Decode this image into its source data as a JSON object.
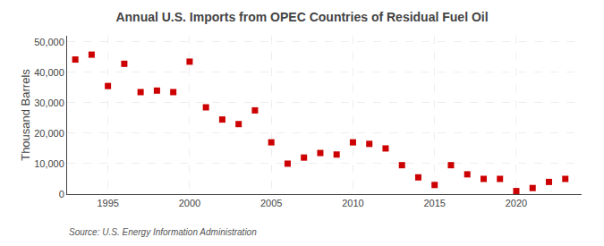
{
  "chart_data": {
    "type": "scatter",
    "title": "Annual U.S. Imports from OPEC Countries of Residual Fuel Oil",
    "ylabel": "Thousand Barrels",
    "annotation": "Source: U.S. Energy Information Administration",
    "x": [
      1993,
      1994,
      1995,
      1996,
      1997,
      1998,
      1999,
      2000,
      2001,
      2002,
      2003,
      2004,
      2005,
      2006,
      2007,
      2008,
      2009,
      2010,
      2011,
      2012,
      2013,
      2014,
      2015,
      2016,
      2017,
      2018,
      2019,
      2020,
      2021,
      2022,
      2023
    ],
    "values": [
      44200,
      45800,
      35500,
      42800,
      33500,
      34000,
      33500,
      43500,
      28500,
      24500,
      23000,
      27500,
      17000,
      10000,
      12000,
      13500,
      13000,
      17000,
      16500,
      15000,
      9500,
      5500,
      3000,
      9500,
      6500,
      5000,
      5000,
      1000,
      2000,
      4000,
      5000
    ],
    "color": "#cc0000",
    "marker": "square",
    "xlim": [
      1992.5,
      2024
    ],
    "xticks": [
      1995,
      2000,
      2005,
      2010,
      2015,
      2020
    ],
    "ylim": [
      0,
      52000
    ],
    "yticks": [
      0,
      {
        "value": 10000,
        "label": "10,000"
      },
      {
        "value": 20000,
        "label": "20,000"
      },
      {
        "value": 30000,
        "label": "30,000"
      },
      {
        "value": 40000,
        "label": "40,000"
      },
      {
        "value": 50000,
        "label": "50,000"
      }
    ],
    "grid": true
  }
}
